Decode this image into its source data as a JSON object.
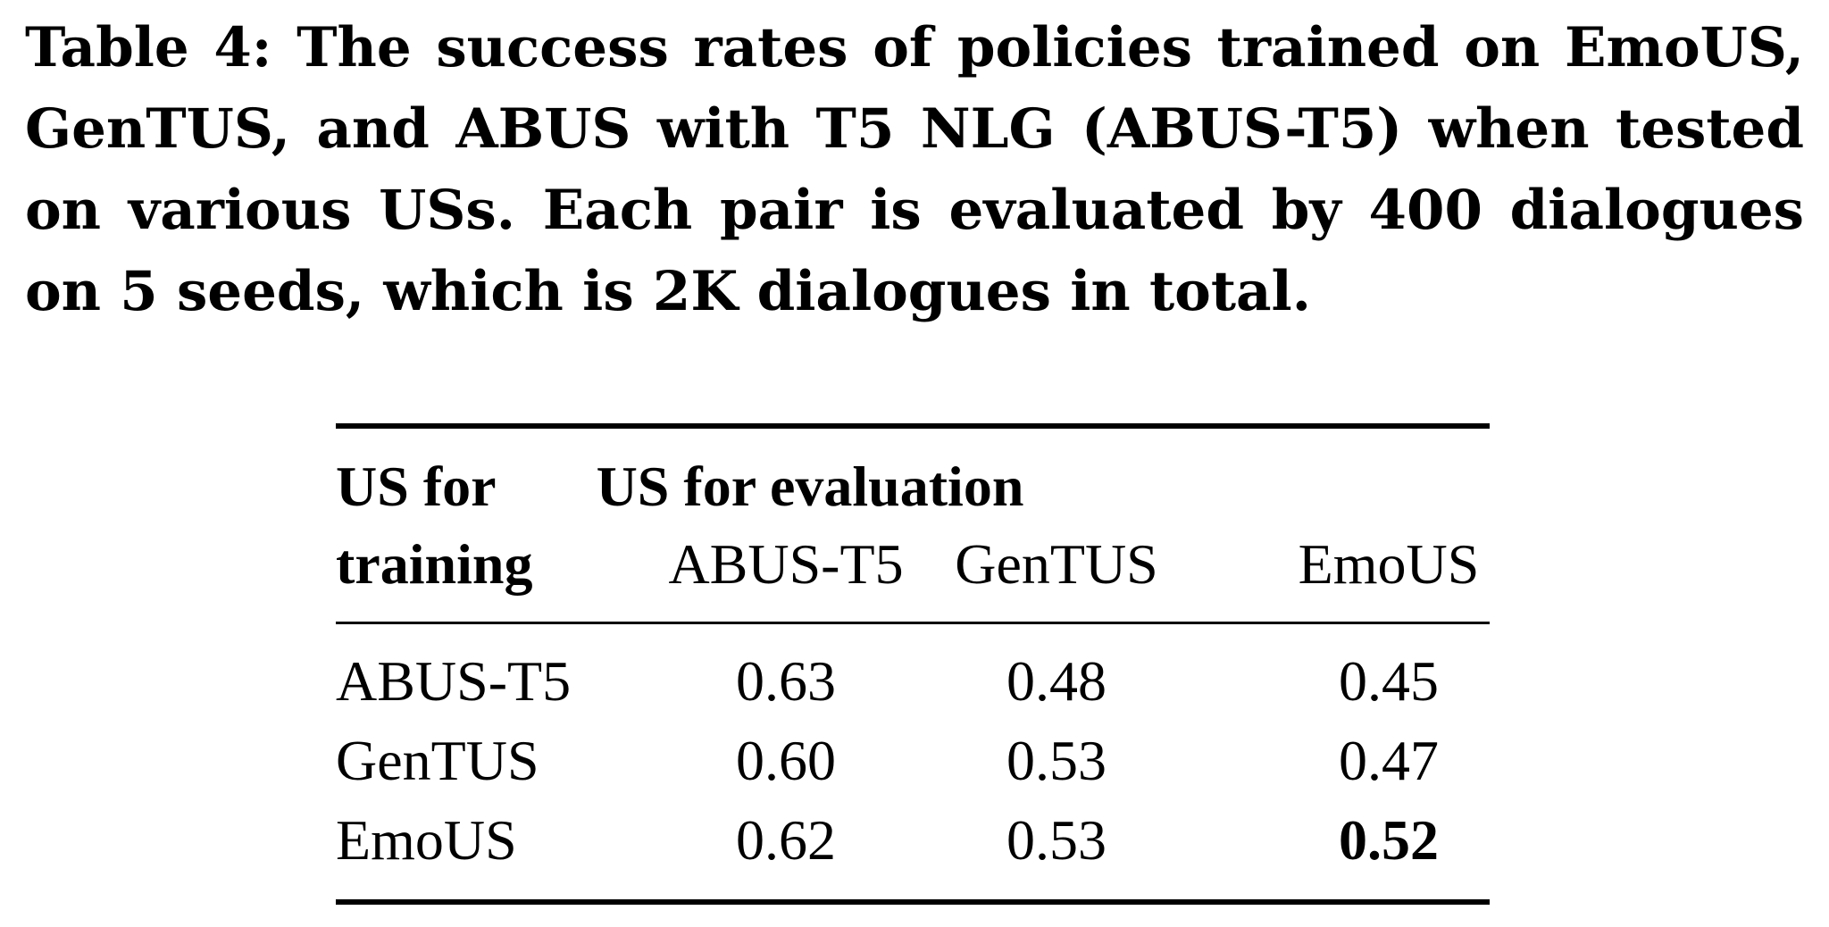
{
  "caption": {
    "text": "Table 4: The success rates of policies trained on EmoUS, GenTUS, and ABUS with T5 NLG (ABUS-T5) when tested on various USs. Each pair is evaluated by 400 dialogues on 5 seeds, which is 2K dialogues in total."
  },
  "table": {
    "header": {
      "row_header_line1": "US for",
      "row_header_line2": "training",
      "group_header": "US for evaluation",
      "columns": [
        "ABUS-T5",
        "GenTUS",
        "EmoUS"
      ]
    },
    "rows": [
      {
        "label": "ABUS-T5",
        "values": [
          "0.63",
          "0.48",
          "0.45"
        ]
      },
      {
        "label": "GenTUS",
        "values": [
          "0.60",
          "0.53",
          "0.47"
        ]
      },
      {
        "label": "EmoUS",
        "values": [
          "0.62",
          "0.53",
          "0.52"
        ],
        "bold_index": 2
      }
    ]
  }
}
